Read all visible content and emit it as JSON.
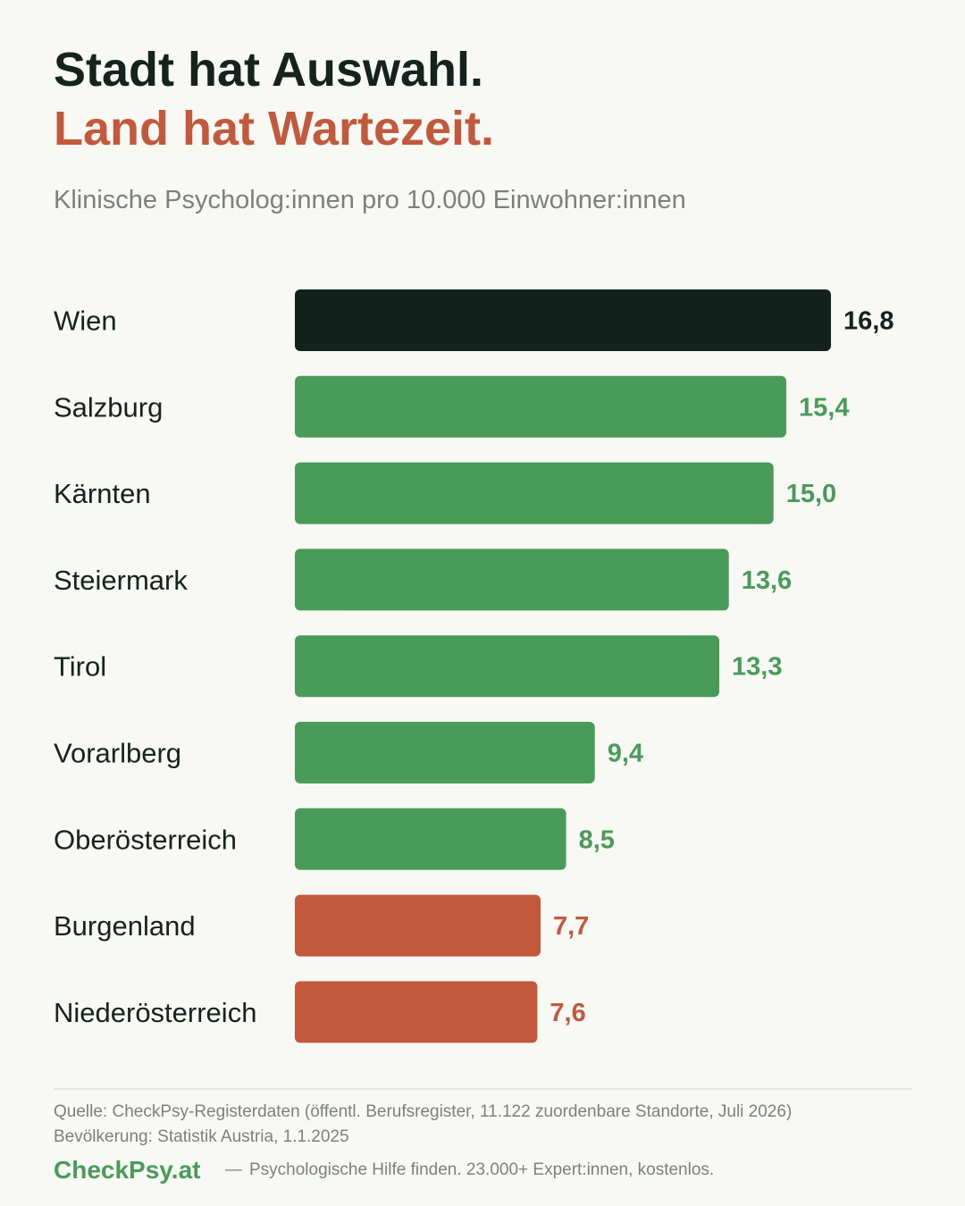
{
  "header": {
    "title_line1": "Stadt hat Auswahl.",
    "title_line2": "Land hat Wartezeit.",
    "subtitle": "Klinische Psycholog:innen pro 10.000 Einwohner:innen"
  },
  "colors": {
    "highlight": "#12231d",
    "above": "#4a9a5a",
    "below": "#c2593c",
    "label": "#14231d"
  },
  "chart_data": {
    "type": "bar",
    "orientation": "horizontal",
    "title": "Stadt hat Auswahl. Land hat Wartezeit.",
    "subtitle": "Klinische Psycholog:innen pro 10.000 Einwohner:innen",
    "xlabel": "",
    "ylabel": "",
    "xlim": [
      0,
      16.8
    ],
    "grid": false,
    "legend": "none",
    "categories": [
      "Wien",
      "Salzburg",
      "Kärnten",
      "Steiermark",
      "Tirol",
      "Vorarlberg",
      "Oberösterreich",
      "Burgenland",
      "Niederösterreich"
    ],
    "values": [
      16.8,
      15.4,
      15.0,
      13.6,
      13.3,
      9.4,
      8.5,
      7.7,
      7.6
    ],
    "value_labels": [
      "16,8",
      "15,4",
      "15,0",
      "13,6",
      "13,3",
      "9,4",
      "8,5",
      "7,7",
      "7,6"
    ],
    "groups": [
      "highlight",
      "above",
      "above",
      "above",
      "above",
      "above",
      "above",
      "below",
      "below"
    ]
  },
  "footer": {
    "source_line1": "Quelle: CheckPsy-Registerdaten (öffentl. Berufsregister, 11.122 zuordenbare Standorte, Juli 2026)",
    "source_line2": "Bevölkerung: Statistik Austria, 1.1.2025",
    "brand": "CheckPsy.at",
    "dash": "—",
    "tagline": "Psychologische Hilfe finden. 23.000+ Expert:innen, kostenlos."
  }
}
